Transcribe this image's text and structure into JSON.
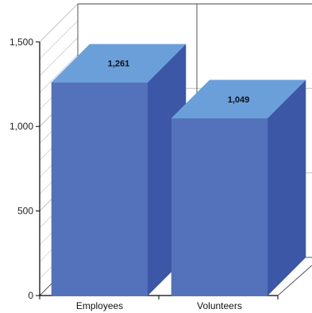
{
  "chart_data": {
    "type": "bar",
    "style": "3d-column",
    "categories": [
      "Employees",
      "Volunteers"
    ],
    "values": [
      1261,
      1049
    ],
    "data_labels": [
      "1,261",
      "1,049"
    ],
    "y_ticks": [
      {
        "value": 0,
        "label": "0"
      },
      {
        "value": 500,
        "label": "500"
      },
      {
        "value": 1000,
        "label": "1,000"
      },
      {
        "value": 1500,
        "label": "1,500"
      }
    ],
    "ylim": [
      0,
      1500
    ],
    "grid": true,
    "legend": "none",
    "colors": {
      "front": "#5472bc",
      "top": "#6a9fd9",
      "side": "#3b57a6",
      "grid": "#c0c0c0",
      "axis": "#000000"
    }
  }
}
